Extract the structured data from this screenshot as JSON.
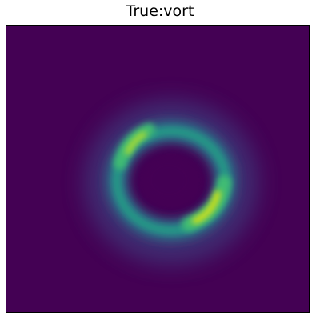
{
  "figure": {
    "title": "True:vort"
  },
  "image": {
    "description_icon": "einstein-ring-lens-image",
    "colormap": "viridis",
    "colors": {
      "background": "#440154",
      "ring_mid": "#2a7d8e",
      "ring_bright": "#3fbc73",
      "hotspot": "#d8e219"
    }
  }
}
